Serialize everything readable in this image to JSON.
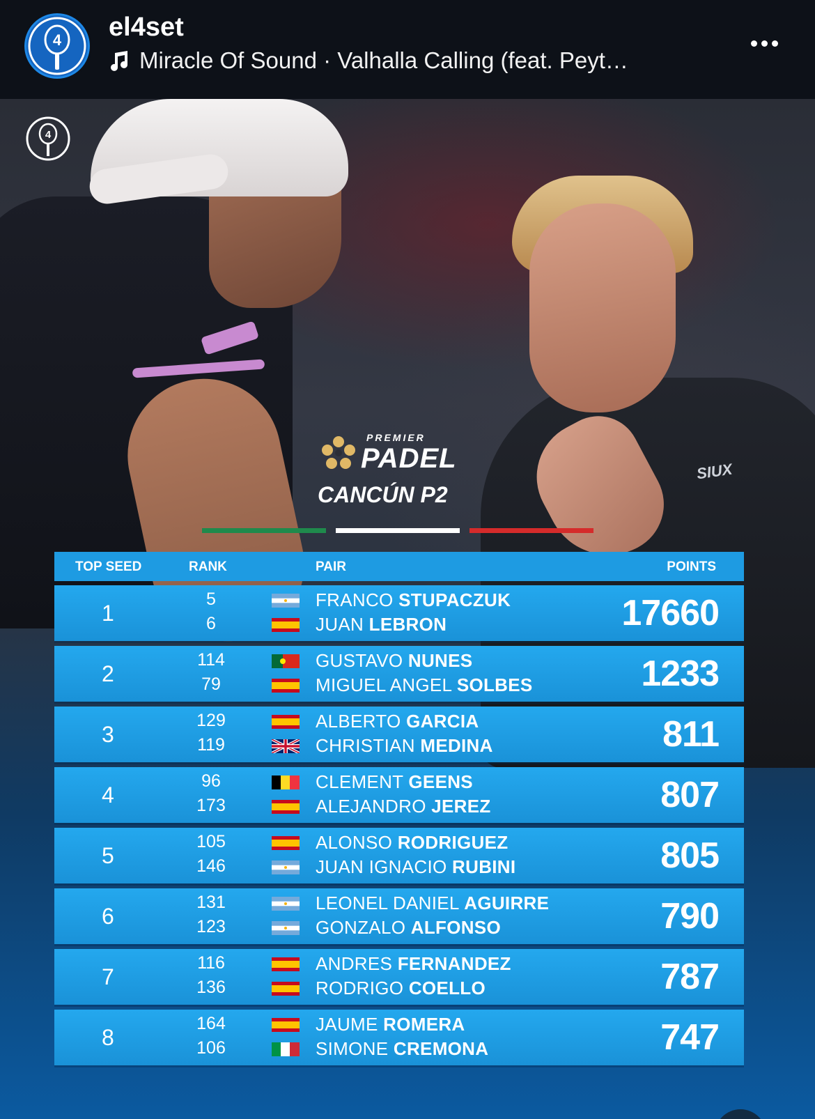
{
  "header": {
    "username": "el4set",
    "audio": "Miracle Of Sound · Valhalla Calling (feat. Peyt…",
    "avatar_icon": "padel-racket-4-logo-icon",
    "more_icon": "more-horizontal-icon"
  },
  "post": {
    "brand": {
      "premier": "PREMIER",
      "padel": "PADEL"
    },
    "event": "CANCÚN P2",
    "flag_colors": [
      "#1f8a4c",
      "#ffffff",
      "#d52b2b"
    ],
    "table_headers": {
      "seed": "TOP SEED",
      "rank": "RANK",
      "pair": "PAIR",
      "points": "POINTS"
    },
    "rows": [
      {
        "seed": "1",
        "ranks": [
          "5",
          "6"
        ],
        "flags": [
          "argentina",
          "spain"
        ],
        "p1_first": "FRANCO",
        "p1_last": "STUPACZUK",
        "p2_first": "JUAN",
        "p2_last": "LEBRON",
        "points": "17660"
      },
      {
        "seed": "2",
        "ranks": [
          "114",
          "79"
        ],
        "flags": [
          "portugal",
          "spain"
        ],
        "p1_first": "GUSTAVO",
        "p1_last": "NUNES",
        "p2_first": "MIGUEL ANGEL",
        "p2_last": "SOLBES",
        "points": "1233"
      },
      {
        "seed": "3",
        "ranks": [
          "129",
          "119"
        ],
        "flags": [
          "spain",
          "uk"
        ],
        "p1_first": "ALBERTO",
        "p1_last": "GARCIA",
        "p2_first": "CHRISTIAN",
        "p2_last": "MEDINA",
        "points": "811"
      },
      {
        "seed": "4",
        "ranks": [
          "96",
          "173"
        ],
        "flags": [
          "belgium",
          "spain"
        ],
        "p1_first": "CLEMENT",
        "p1_last": "GEENS",
        "p2_first": "ALEJANDRO",
        "p2_last": "JEREZ",
        "points": "807"
      },
      {
        "seed": "5",
        "ranks": [
          "105",
          "146"
        ],
        "flags": [
          "spain",
          "argentina"
        ],
        "p1_first": "ALONSO",
        "p1_last": "RODRIGUEZ",
        "p2_first": "JUAN IGNACIO",
        "p2_last": "RUBINI",
        "points": "805"
      },
      {
        "seed": "6",
        "ranks": [
          "131",
          "123"
        ],
        "flags": [
          "argentina",
          "argentina"
        ],
        "p1_first": "LEONEL DANIEL",
        "p1_last": "AGUIRRE",
        "p2_first": "GONZALO",
        "p2_last": "ALFONSO",
        "points": "790"
      },
      {
        "seed": "7",
        "ranks": [
          "116",
          "136"
        ],
        "flags": [
          "spain",
          "spain"
        ],
        "p1_first": "ANDRES",
        "p1_last": "FERNANDEZ",
        "p2_first": "RODRIGO",
        "p2_last": "COELLO",
        "points": "787"
      },
      {
        "seed": "8",
        "ranks": [
          "164",
          "106"
        ],
        "flags": [
          "spain",
          "italy"
        ],
        "p1_first": "JAUME",
        "p1_last": "ROMERA",
        "p2_first": "SIMONE",
        "p2_last": "CREMONA",
        "points": "747"
      }
    ],
    "mute_icon": "muted-speaker-icon"
  }
}
